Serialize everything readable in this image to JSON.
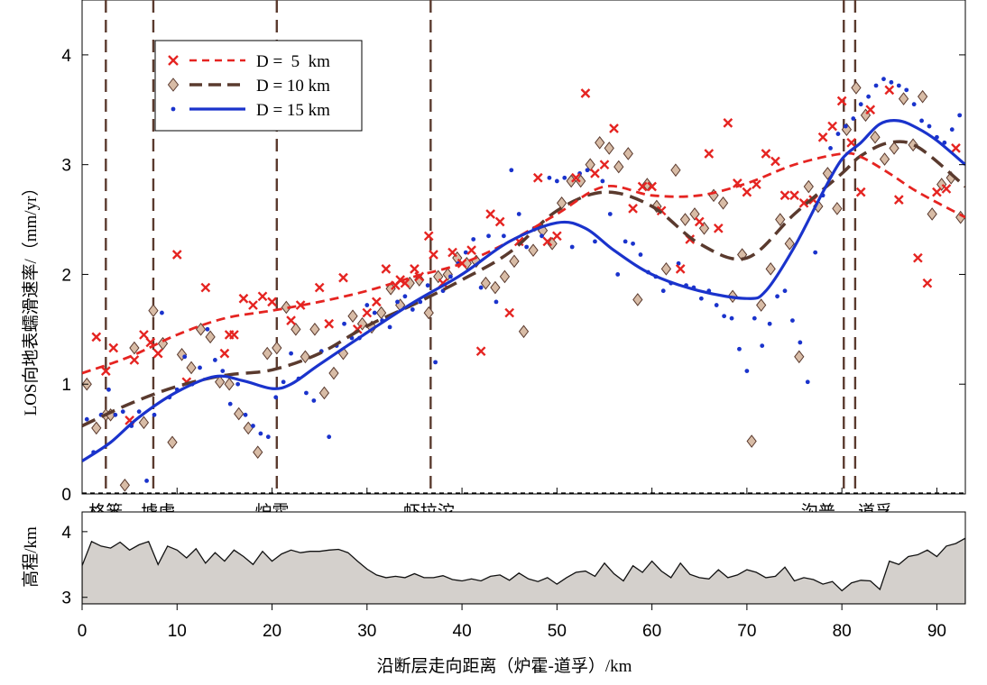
{
  "chart_data": {
    "type": "scatter",
    "xlabel": "沿断层走向距离（炉霍-道孚）/km",
    "ylabel_main": "LOS向地表蠕滑速率/（mm/yr）",
    "ylabel_elev": "高程/km",
    "xlim": [
      0,
      93
    ],
    "ylim": [
      0,
      4.5
    ],
    "elev_ylim": [
      2.9,
      4.3
    ],
    "x_ticks": [
      0,
      10,
      20,
      30,
      40,
      50,
      60,
      70,
      80,
      90
    ],
    "x_tick_labels": [
      "0",
      "10",
      "20",
      "30",
      "40",
      "50",
      "60",
      "70",
      "80",
      "90"
    ],
    "y_ticks": [
      0,
      1,
      2,
      3,
      4
    ],
    "y_tick_labels": [
      "0",
      "1",
      "2",
      "3",
      "4"
    ],
    "elev_ticks": [
      3,
      4
    ],
    "elev_tick_labels": [
      "3",
      "4"
    ],
    "colors": {
      "d5": "#e52421",
      "d10": "#5a3a2e",
      "d10_fill": "#d8bca6",
      "d15": "#1a33cc",
      "fault": "#5a3a2e",
      "terrain": "#d4d0cc"
    },
    "legend": {
      "position": "top-left",
      "entries": [
        {
          "label": "D =  5  km",
          "marker": "x-mark"
        },
        {
          "label": "D = 10 km",
          "marker": "diamond"
        },
        {
          "label": "D = 15 km",
          "marker": "dot"
        }
      ]
    },
    "fault_lines": [
      2.5,
      7.5,
      20.5,
      36.7,
      80.2,
      81.4
    ],
    "places": [
      {
        "name": "格篓",
        "x": 2.5
      },
      {
        "name": "墟虚",
        "x": 8
      },
      {
        "name": "炉霍",
        "x": 20
      },
      {
        "name": "虾拉沱",
        "x": 36.5
      },
      {
        "name": "沟普",
        "x": 77.5
      },
      {
        "name": "道孚",
        "x": 83.5
      }
    ],
    "series": [
      {
        "name": "D = 5 km",
        "curve_x": [
          0,
          5,
          10,
          15,
          20,
          25,
          30,
          35,
          40,
          45,
          50,
          55,
          60,
          65,
          70,
          75,
          80,
          82,
          85,
          88,
          93
        ],
        "curve_y": [
          1.1,
          1.25,
          1.45,
          1.6,
          1.67,
          1.75,
          1.85,
          1.98,
          2.1,
          2.3,
          2.55,
          2.8,
          2.72,
          2.72,
          2.83,
          3.0,
          3.1,
          3.07,
          2.92,
          2.75,
          2.52
        ],
        "points_x": [
          1.5,
          2.5,
          3.3,
          5,
          5.5,
          6.5,
          7.2,
          8,
          10,
          11,
          13,
          15,
          15.5,
          16,
          17,
          18,
          19,
          20,
          22,
          23,
          25,
          26,
          27.5,
          29,
          30,
          31,
          32,
          33,
          33.5,
          34,
          35,
          35.5,
          36.5,
          37,
          38,
          39,
          40,
          41,
          42,
          43,
          44,
          45,
          46,
          48,
          49,
          50,
          52,
          53,
          54,
          55,
          56,
          58,
          59,
          60,
          61,
          63,
          64,
          65,
          66,
          67,
          68,
          69,
          70,
          71,
          72,
          73,
          74,
          75,
          76,
          77,
          78,
          79,
          80,
          81,
          82,
          83,
          85,
          86,
          88,
          89,
          90,
          91,
          92
        ],
        "points_y": [
          1.43,
          1.12,
          1.33,
          0.67,
          1.22,
          1.45,
          1.38,
          1.28,
          2.18,
          1.02,
          1.88,
          1.28,
          1.45,
          1.45,
          1.78,
          1.72,
          1.8,
          1.75,
          1.58,
          1.72,
          1.88,
          1.55,
          1.97,
          1.5,
          1.65,
          1.75,
          2.05,
          1.9,
          1.95,
          1.92,
          2.05,
          1.98,
          2.35,
          2.18,
          1.92,
          2.2,
          2.1,
          2.22,
          1.3,
          2.55,
          2.48,
          1.65,
          2.3,
          2.88,
          2.3,
          2.35,
          2.88,
          3.65,
          2.92,
          3.0,
          3.33,
          2.6,
          2.8,
          2.8,
          2.58,
          2.05,
          2.32,
          2.48,
          3.1,
          2.42,
          3.38,
          2.83,
          2.75,
          2.82,
          3.1,
          3.03,
          2.72,
          2.72,
          2.65,
          2.68,
          3.25,
          3.35,
          3.58,
          3.2,
          2.75,
          3.5,
          3.68,
          2.68,
          2.15,
          1.92,
          2.75,
          2.78,
          3.15
        ]
      },
      {
        "name": "D = 10 km",
        "curve_x": [
          0,
          5,
          10,
          15,
          20,
          25,
          30,
          35,
          40,
          45,
          50,
          55,
          60,
          65,
          70,
          75,
          80,
          82,
          85,
          88,
          93
        ],
        "curve_y": [
          0.62,
          0.82,
          0.98,
          1.08,
          1.13,
          1.28,
          1.53,
          1.73,
          1.95,
          2.2,
          2.58,
          2.75,
          2.62,
          2.28,
          2.15,
          2.55,
          2.92,
          3.08,
          3.2,
          3.16,
          2.8
        ],
        "points_x": [
          0.5,
          1.5,
          2.5,
          3,
          4.5,
          5.5,
          6.5,
          7.5,
          8.5,
          9.5,
          10.5,
          11.5,
          12.5,
          13.5,
          14.5,
          15.5,
          16.5,
          17.5,
          18.5,
          19.5,
          20.5,
          21.5,
          22.5,
          23.5,
          24.5,
          25.5,
          26.5,
          27.5,
          28.5,
          29.5,
          30.5,
          31.5,
          32.5,
          33.5,
          34.5,
          35.5,
          36.5,
          37.5,
          38.5,
          39.5,
          40.5,
          41.5,
          42.5,
          43.5,
          44.5,
          45.5,
          46.5,
          47.5,
          48.5,
          49.5,
          50.5,
          51.5,
          52.5,
          53.5,
          54.5,
          55.5,
          56.5,
          57.5,
          58.5,
          59.5,
          60.5,
          61.5,
          62.5,
          63.5,
          64.5,
          65.5,
          66.5,
          67.5,
          68.5,
          69.5,
          70.5,
          71.5,
          72.5,
          73.5,
          74.5,
          75.5,
          76.5,
          77.5,
          78.5,
          79.5,
          80.5,
          81.5,
          82.5,
          83.5,
          84.5,
          85.5,
          86.5,
          87.5,
          88.5,
          89.5,
          90.5,
          91.5,
          92.5
        ],
        "points_y": [
          1.0,
          0.6,
          0.72,
          0.72,
          0.08,
          1.33,
          0.65,
          1.67,
          1.37,
          0.47,
          1.27,
          1.15,
          1.5,
          1.43,
          1.02,
          1.0,
          0.73,
          0.6,
          0.38,
          1.28,
          1.33,
          1.7,
          1.5,
          1.25,
          1.5,
          0.92,
          1.1,
          1.28,
          1.62,
          1.55,
          1.52,
          1.65,
          1.87,
          1.72,
          1.92,
          1.95,
          1.65,
          1.98,
          2.0,
          2.15,
          2.1,
          2.12,
          1.92,
          1.88,
          1.98,
          2.12,
          1.48,
          2.22,
          2.4,
          2.28,
          2.65,
          2.85,
          2.85,
          3.0,
          3.2,
          3.15,
          2.98,
          3.1,
          1.77,
          2.82,
          2.62,
          2.05,
          2.95,
          2.5,
          2.55,
          2.42,
          2.72,
          2.65,
          1.8,
          2.18,
          0.48,
          1.72,
          2.05,
          2.5,
          2.28,
          1.25,
          2.8,
          2.62,
          2.92,
          2.6,
          3.32,
          3.7,
          3.45,
          3.25,
          3.05,
          3.15,
          3.6,
          3.18,
          3.62,
          2.55,
          2.82,
          2.88,
          2.52
        ]
      },
      {
        "name": "D = 15 km",
        "curve_x": [
          0,
          3,
          6,
          10,
          14,
          17,
          20,
          22,
          25,
          30,
          35,
          40,
          45,
          50,
          53,
          56,
          60,
          65,
          70,
          72,
          75,
          78,
          80,
          82,
          84,
          86,
          88,
          90,
          93
        ],
        "curve_y": [
          0.3,
          0.47,
          0.7,
          0.93,
          1.07,
          1.03,
          0.96,
          1.0,
          1.18,
          1.47,
          1.75,
          2.0,
          2.3,
          2.47,
          2.42,
          2.22,
          2.0,
          1.85,
          1.78,
          1.85,
          2.25,
          2.75,
          3.05,
          3.2,
          3.37,
          3.4,
          3.33,
          3.22,
          3.0
        ],
        "points_x": [
          0.5,
          1.2,
          2.0,
          2.8,
          3.5,
          4.3,
          5.2,
          6.0,
          6.8,
          7.6,
          8.4,
          9.2,
          10.0,
          10.8,
          11.6,
          12.4,
          13.2,
          14.0,
          14.8,
          15.6,
          16.4,
          17.2,
          18.0,
          18.8,
          19.6,
          20.4,
          21.2,
          22.0,
          22.8,
          23.6,
          24.4,
          25.2,
          26.0,
          26.8,
          27.6,
          28.4,
          29.2,
          30.0,
          30.8,
          31.6,
          32.4,
          33.2,
          34.0,
          34.8,
          35.6,
          36.4,
          37.2,
          38.0,
          38.8,
          39.6,
          40.4,
          41.2,
          42.0,
          42.8,
          43.6,
          44.4,
          45.2,
          46.0,
          46.8,
          47.6,
          48.4,
          49.2,
          50.0,
          50.8,
          51.6,
          52.4,
          53.2,
          54.0,
          54.8,
          55.6,
          56.4,
          57.2,
          58.0,
          58.8,
          59.6,
          60.4,
          61.2,
          62.0,
          62.8,
          63.6,
          64.4,
          65.2,
          66.0,
          66.8,
          67.6,
          68.4,
          69.2,
          70.0,
          70.8,
          71.6,
          72.4,
          73.2,
          74.0,
          74.8,
          75.6,
          76.4,
          77.2,
          78.0,
          78.8,
          79.6,
          80.4,
          81.2,
          82.0,
          82.8,
          83.6,
          84.4,
          85.2,
          86.0,
          86.8,
          87.6,
          88.4,
          89.2,
          90.0,
          90.8,
          91.6,
          92.4
        ],
        "points_y": [
          0.68,
          0.38,
          0.72,
          0.95,
          0.72,
          0.75,
          0.62,
          0.75,
          0.12,
          0.72,
          1.65,
          0.88,
          0.95,
          1.25,
          1.0,
          1.15,
          1.5,
          1.22,
          1.12,
          0.82,
          1.0,
          0.72,
          0.62,
          0.55,
          0.52,
          0.88,
          1.02,
          1.28,
          1.05,
          0.92,
          0.85,
          1.3,
          0.52,
          1.35,
          1.55,
          1.42,
          1.42,
          1.72,
          1.65,
          1.58,
          1.52,
          1.75,
          1.8,
          1.68,
          1.75,
          1.9,
          1.2,
          1.85,
          1.98,
          2.1,
          2.2,
          2.32,
          1.88,
          2.35,
          1.75,
          2.35,
          2.95,
          2.55,
          2.25,
          2.42,
          2.35,
          2.88,
          2.85,
          2.88,
          2.25,
          2.92,
          2.95,
          2.3,
          2.85,
          2.55,
          2.0,
          2.3,
          2.28,
          2.18,
          2.02,
          1.98,
          1.85,
          1.92,
          2.1,
          1.9,
          1.88,
          1.78,
          1.85,
          1.72,
          1.62,
          1.6,
          1.32,
          1.12,
          1.6,
          1.35,
          1.55,
          1.8,
          1.85,
          1.58,
          1.38,
          1.02,
          2.2,
          2.72,
          3.15,
          3.28,
          3.35,
          3.42,
          3.55,
          3.62,
          3.72,
          3.78,
          3.75,
          3.72,
          3.68,
          3.55,
          3.4,
          3.35,
          3.25,
          3.2,
          3.32,
          3.45,
          3.18
        ]
      }
    ],
    "elevation": {
      "x": [
        0,
        1,
        2,
        3,
        4,
        5,
        6,
        7,
        8,
        9,
        10,
        11,
        12,
        13,
        14,
        15,
        16,
        17,
        18,
        19,
        20,
        21,
        22,
        23,
        24,
        25,
        26,
        27,
        28,
        29,
        30,
        31,
        32,
        33,
        34,
        35,
        36,
        37,
        38,
        39,
        40,
        41,
        42,
        43,
        44,
        45,
        46,
        47,
        48,
        49,
        50,
        51,
        52,
        53,
        54,
        55,
        56,
        57,
        58,
        59,
        60,
        61,
        62,
        63,
        64,
        65,
        66,
        67,
        68,
        69,
        70,
        71,
        72,
        73,
        74,
        75,
        76,
        77,
        78,
        79,
        80,
        81,
        82,
        83,
        84,
        85,
        86,
        87,
        88,
        89,
        90,
        91,
        92,
        93
      ],
      "y": [
        3.48,
        3.85,
        3.78,
        3.75,
        3.84,
        3.72,
        3.8,
        3.85,
        3.5,
        3.78,
        3.72,
        3.6,
        3.74,
        3.52,
        3.68,
        3.55,
        3.72,
        3.62,
        3.5,
        3.7,
        3.55,
        3.66,
        3.72,
        3.68,
        3.7,
        3.7,
        3.72,
        3.73,
        3.68,
        3.55,
        3.43,
        3.34,
        3.3,
        3.32,
        3.3,
        3.36,
        3.3,
        3.3,
        3.33,
        3.27,
        3.25,
        3.28,
        3.25,
        3.32,
        3.34,
        3.26,
        3.37,
        3.28,
        3.24,
        3.3,
        3.2,
        3.3,
        3.38,
        3.4,
        3.32,
        3.52,
        3.36,
        3.25,
        3.48,
        3.38,
        3.55,
        3.4,
        3.3,
        3.52,
        3.35,
        3.3,
        3.28,
        3.42,
        3.3,
        3.34,
        3.42,
        3.38,
        3.3,
        3.32,
        3.46,
        3.25,
        3.3,
        3.27,
        3.2,
        3.24,
        3.1,
        3.22,
        3.26,
        3.25,
        3.12,
        3.55,
        3.5,
        3.62,
        3.65,
        3.72,
        3.62,
        3.78,
        3.82,
        3.9
      ]
    }
  }
}
